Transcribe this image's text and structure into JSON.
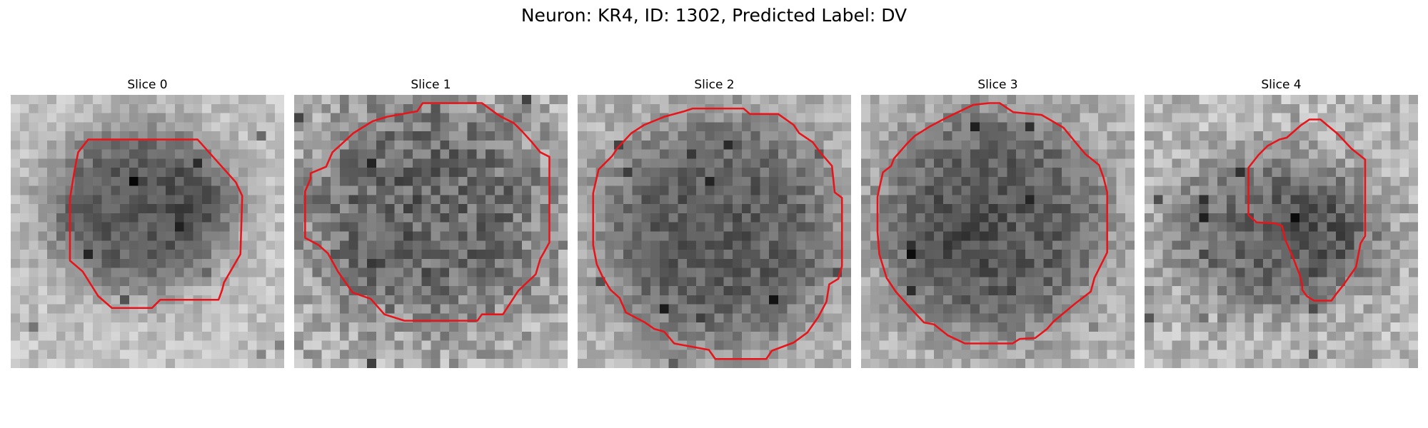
{
  "figure": {
    "title": "Neuron: KR4, ID: 1302, Predicted Label: DV"
  },
  "contour_color": "#e8141a",
  "panels": [
    {
      "title": "Slice 0",
      "contour": [
        [
          8.5,
          4.9
        ],
        [
          20.5,
          4.9
        ],
        [
          24.7,
          9.6
        ],
        [
          25.4,
          11.1
        ],
        [
          25.2,
          17.5
        ],
        [
          23.4,
          20.6
        ],
        [
          23.2,
          21.4
        ],
        [
          22.8,
          22.5
        ],
        [
          16.4,
          22.5
        ],
        [
          15.5,
          23.4
        ],
        [
          11.1,
          23.4
        ],
        [
          9.6,
          22.1
        ],
        [
          7.9,
          19.4
        ],
        [
          6.5,
          18.2
        ],
        [
          6.5,
          11.4
        ],
        [
          7.0,
          8.3
        ],
        [
          7.4,
          6.3
        ]
      ]
    },
    {
      "title": "Slice 1",
      "contour": [
        [
          10.2,
          2.4
        ],
        [
          13.5,
          1.8
        ],
        [
          14.1,
          0.9
        ],
        [
          20.6,
          0.9
        ],
        [
          22.1,
          2.0
        ],
        [
          22.7,
          2.4
        ],
        [
          24.1,
          3.1
        ],
        [
          25.0,
          4.0
        ],
        [
          26.0,
          5.1
        ],
        [
          27.0,
          6.3
        ],
        [
          28.0,
          6.8
        ],
        [
          28.0,
          16.2
        ],
        [
          27.4,
          17.3
        ],
        [
          27.0,
          18.0
        ],
        [
          26.5,
          19.7
        ],
        [
          24.6,
          21.5
        ],
        [
          22.9,
          24.1
        ],
        [
          20.6,
          24.1
        ],
        [
          20.1,
          24.8
        ],
        [
          12.1,
          24.8
        ],
        [
          9.9,
          24.1
        ],
        [
          8.4,
          22.4
        ],
        [
          6.4,
          21.7
        ],
        [
          4.8,
          19.4
        ],
        [
          3.7,
          17.4
        ],
        [
          2.7,
          16.5
        ],
        [
          1.2,
          15.7
        ],
        [
          1.2,
          10.6
        ],
        [
          1.8,
          9.2
        ],
        [
          1.8,
          8.6
        ],
        [
          3.5,
          7.9
        ],
        [
          4.2,
          6.3
        ],
        [
          5.2,
          5.4
        ],
        [
          6.5,
          4.2
        ],
        [
          7.3,
          3.7
        ],
        [
          8.6,
          2.9
        ]
      ]
    },
    {
      "title": "Slice 2",
      "contour": [
        [
          9.5,
          2.4
        ],
        [
          11.7,
          1.8
        ],
        [
          12.6,
          1.5
        ],
        [
          18.2,
          1.5
        ],
        [
          18.9,
          2.1
        ],
        [
          22.0,
          2.1
        ],
        [
          23.7,
          3.3
        ],
        [
          24.3,
          4.2
        ],
        [
          25.8,
          5.2
        ],
        [
          26.6,
          6.3
        ],
        [
          27.9,
          7.8
        ],
        [
          28.2,
          10.7
        ],
        [
          29.0,
          11.3
        ],
        [
          29.0,
          18.8
        ],
        [
          28.6,
          20.2
        ],
        [
          27.6,
          20.8
        ],
        [
          27.3,
          22.7
        ],
        [
          26.4,
          24.4
        ],
        [
          25.2,
          26.1
        ],
        [
          23.7,
          27.2
        ],
        [
          21.3,
          28.1
        ],
        [
          20.7,
          29.0
        ],
        [
          15.1,
          29.0
        ],
        [
          14.4,
          28.0
        ],
        [
          10.6,
          27.3
        ],
        [
          9.5,
          26.0
        ],
        [
          8.4,
          25.7
        ],
        [
          7.4,
          25.0
        ],
        [
          5.3,
          23.9
        ],
        [
          4.6,
          22.3
        ],
        [
          3.6,
          21.4
        ],
        [
          2.7,
          19.9
        ],
        [
          2.1,
          18.6
        ],
        [
          1.7,
          16.5
        ],
        [
          1.7,
          10.8
        ],
        [
          2.3,
          8.2
        ],
        [
          3.8,
          6.7
        ],
        [
          4.4,
          5.8
        ],
        [
          5.9,
          4.2
        ],
        [
          7.3,
          3.3
        ]
      ]
    },
    {
      "title": "Slice 3",
      "contour": [
        [
          10.2,
          2.1
        ],
        [
          12.3,
          1.1
        ],
        [
          14.1,
          0.9
        ],
        [
          15.2,
          0.9
        ],
        [
          16.7,
          1.9
        ],
        [
          19.8,
          2.2
        ],
        [
          21.0,
          2.9
        ],
        [
          22.2,
          3.6
        ],
        [
          23.6,
          5.3
        ],
        [
          24.6,
          6.5
        ],
        [
          26.1,
          7.7
        ],
        [
          26.6,
          9.1
        ],
        [
          27.0,
          10.7
        ],
        [
          27.0,
          17.3
        ],
        [
          26.4,
          18.5
        ],
        [
          25.6,
          20.1
        ],
        [
          25.2,
          21.6
        ],
        [
          23.5,
          22.9
        ],
        [
          21.1,
          24.9
        ],
        [
          20.4,
          25.7
        ],
        [
          19.1,
          26.7
        ],
        [
          17.4,
          26.8
        ],
        [
          16.6,
          27.3
        ],
        [
          11.4,
          27.3
        ],
        [
          9.5,
          26.4
        ],
        [
          8.0,
          25.2
        ],
        [
          6.9,
          25.0
        ],
        [
          5.4,
          23.4
        ],
        [
          3.8,
          21.6
        ],
        [
          2.8,
          20.1
        ],
        [
          2.0,
          17.5
        ],
        [
          1.8,
          15.0
        ],
        [
          1.8,
          11.2
        ],
        [
          2.1,
          9.8
        ],
        [
          2.4,
          8.5
        ],
        [
          3.3,
          7.8
        ],
        [
          3.6,
          7.0
        ],
        [
          5.0,
          5.4
        ],
        [
          5.9,
          4.5
        ],
        [
          7.5,
          3.5
        ],
        [
          8.8,
          2.8
        ]
      ]
    },
    {
      "title": "Slice 4",
      "contour": [
        [
          15.6,
          4.7
        ],
        [
          17.2,
          3.3
        ],
        [
          18.1,
          2.7
        ],
        [
          19.3,
          2.7
        ],
        [
          20.6,
          3.8
        ],
        [
          21.2,
          4.3
        ],
        [
          22.7,
          5.9
        ],
        [
          24.2,
          7.1
        ],
        [
          24.2,
          15.5
        ],
        [
          23.7,
          16.3
        ],
        [
          23.2,
          18.9
        ],
        [
          21.8,
          20.9
        ],
        [
          21.0,
          21.9
        ],
        [
          20.5,
          22.6
        ],
        [
          18.6,
          22.6
        ],
        [
          17.8,
          22.1
        ],
        [
          17.3,
          21.4
        ],
        [
          17.3,
          20.9
        ],
        [
          17.0,
          19.7
        ],
        [
          16.3,
          17.9
        ],
        [
          15.4,
          15.8
        ],
        [
          15.1,
          14.4
        ],
        [
          14.3,
          14.1
        ],
        [
          12.3,
          14.0
        ],
        [
          11.4,
          13.2
        ],
        [
          11.4,
          8.0
        ],
        [
          12.5,
          6.6
        ],
        [
          13.5,
          5.6
        ],
        [
          14.8,
          4.9
        ]
      ]
    }
  ]
}
